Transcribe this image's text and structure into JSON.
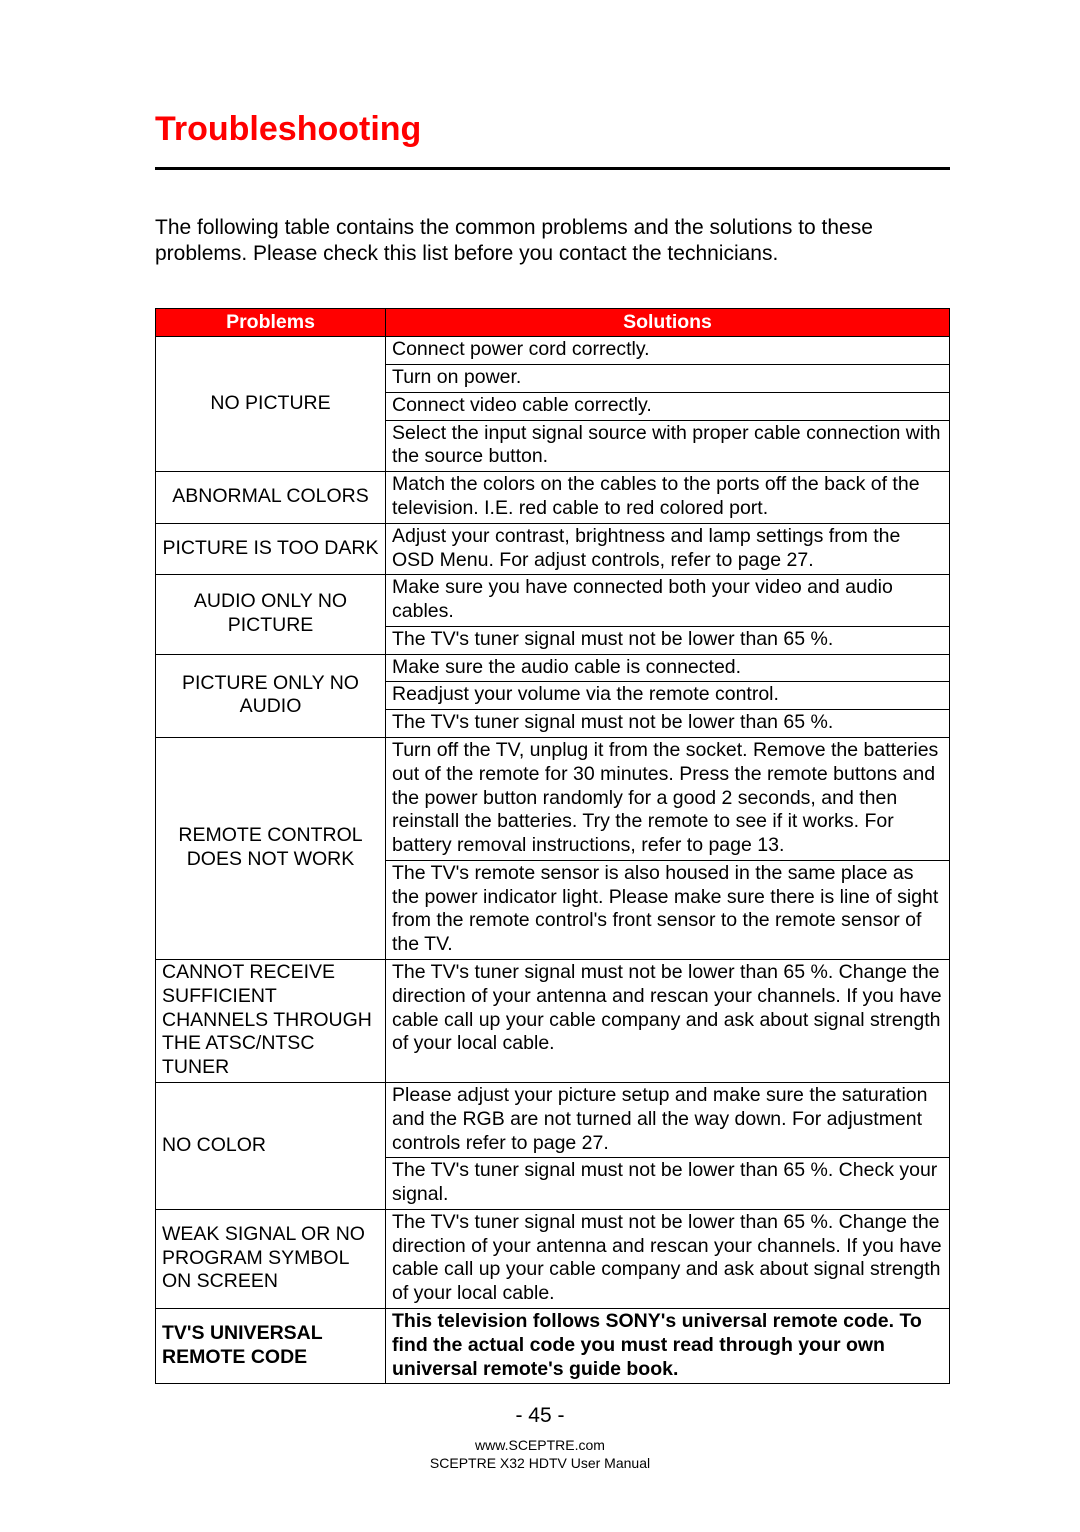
{
  "heading": "Troubleshooting",
  "intro": "The following table contains the common problems and the solutions to these problems. Please check this list before you contact the technicians.",
  "headers": {
    "problems": "Problems",
    "solutions": "Solutions"
  },
  "rows": [
    {
      "problem": "NO PICTURE",
      "align": "center",
      "solutions": [
        "Connect power cord correctly.",
        "Turn on power.",
        "Connect video cable correctly.",
        "Select the input signal source with proper cable connection with the source button."
      ]
    },
    {
      "problem": "ABNORMAL COLORS",
      "align": "center",
      "solutions": [
        "Match the colors on the cables to the ports off the back of the television.  I.E. red cable to red colored port."
      ]
    },
    {
      "problem": "PICTURE IS TOO DARK",
      "align": "center",
      "solutions": [
        "Adjust your contrast, brightness and lamp settings from the OSD Menu. For adjust controls, refer to page 27."
      ]
    },
    {
      "problem": "AUDIO ONLY NO PICTURE",
      "align": "center",
      "solutions": [
        "Make sure you have connected both your video and audio cables.",
        "The TV's tuner signal must not be lower than 65 %."
      ]
    },
    {
      "problem": "PICTURE ONLY NO AUDIO",
      "align": "center",
      "solutions": [
        "Make sure the audio cable is connected.",
        "Readjust your volume via the remote control.",
        "The TV's tuner signal must not be lower than 65 %."
      ]
    },
    {
      "problem": "REMOTE CONTROL DOES NOT WORK",
      "align": "center",
      "solutions": [
        "Turn off the TV, unplug it from the socket.  Remove the batteries out of the remote for 30 minutes.  Press the remote buttons and the power button randomly for a good 2 seconds, and then reinstall the batteries.  Try the remote to see if it works.  For battery removal instructions, refer to page 13.",
        "The TV's remote sensor is also housed in the same place as the power indicator light.  Please make sure there is line of sight from the remote control's front sensor to the remote sensor of the TV."
      ]
    },
    {
      "problem": "CANNOT RECEIVE SUFFICIENT CHANNELS THROUGH  THE ATSC/NTSC TUNER",
      "align": "left",
      "solutions": [
        "The TV's tuner signal must not be lower than 65 %.  Change the direction of your antenna and rescan your channels.  If you have cable call up your cable company and ask about signal strength of your local cable."
      ]
    },
    {
      "problem": "NO COLOR",
      "align": "left",
      "solutions": [
        "Please adjust your picture setup and make sure the saturation and the RGB are not turned all the way down. For adjustment controls refer to page 27.",
        "The TV's tuner signal must not be lower than 65 %.  Check your signal."
      ]
    },
    {
      "problem": "WEAK SIGNAL OR NO PROGRAM SYMBOL ON SCREEN",
      "align": "left",
      "solutions": [
        "The TV's tuner signal must not be lower than 65 %.  Change the direction of your antenna and rescan your channels.  If you have cable call up your cable company and ask about signal strength of your local cable."
      ]
    },
    {
      "problem": "TV'S UNIVERSAL REMOTE CODE",
      "align": "left",
      "bold": true,
      "solutions": [
        "This television follows SONY's universal remote code.  To find the actual code you must read through your own universal remote's guide book."
      ]
    }
  ],
  "page_number": "- 45 -",
  "footer_url": "www.SCEPTRE.com",
  "footer_manual": "SCEPTRE X32 HDTV User Manual",
  "colors": {
    "heading": "#ff0000",
    "header_bg": "#ff0000",
    "header_text": "#ffffff",
    "border": "#000000",
    "text": "#000000",
    "background": "#ffffff"
  }
}
